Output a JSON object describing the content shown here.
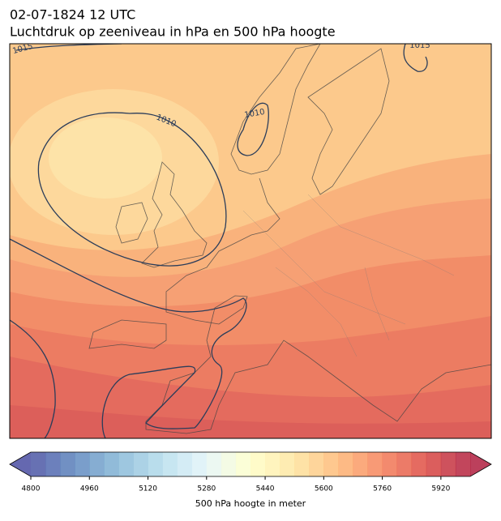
{
  "title": "02-07-1824 12 UTC",
  "subtitle": "Luchtdruk op zeeniveau in hPa en 500 hPa hoogte",
  "contour_labels": [
    1015,
    1010,
    1010,
    1015
  ],
  "colorbar": {
    "label": "500 hPa hoogte in meter",
    "range": [
      4800,
      6000
    ],
    "step": 40,
    "ticks": [
      4800,
      4960,
      5120,
      5280,
      5440,
      5600,
      5760,
      5920
    ],
    "colormap": [
      "#313695",
      "#4575b4",
      "#74add1",
      "#abd9e9",
      "#e0f3f8",
      "#ffffbf",
      "#fee090",
      "#fdae61",
      "#f46d43",
      "#d73027",
      "#a50026"
    ]
  }
}
